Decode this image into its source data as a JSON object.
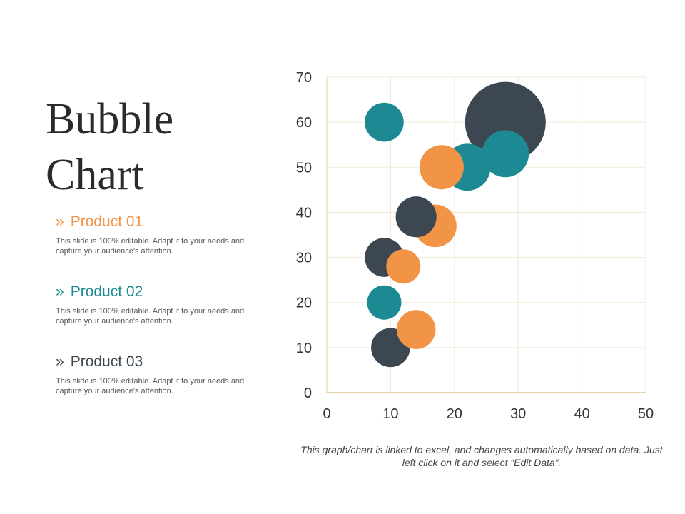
{
  "title": {
    "line1": "Bubble",
    "line2": "Chart"
  },
  "products": [
    {
      "chevron": "»",
      "name": "Product 01",
      "color": "#f29445",
      "description": "This slide is 100% editable. Adapt it to your needs and capture your audience's attention."
    },
    {
      "chevron": "»",
      "name": "Product 02",
      "color": "#1d8a93",
      "description": "This slide is 100% editable. Adapt it to your needs and capture your audience's attention."
    },
    {
      "chevron": "»",
      "name": "Product 03",
      "color": "#3d4752",
      "description": "This slide is 100% editable. Adapt it to your needs and capture your audience's attention."
    }
  ],
  "note": "This graph/chart is linked to excel, and changes automatically based on data. Just left click on it and select “Edit Data”.",
  "chart_data": {
    "type": "scatter",
    "subtype": "bubble",
    "title": "",
    "xlabel": "",
    "ylabel": "",
    "xlim": [
      0,
      50
    ],
    "ylim": [
      0,
      70
    ],
    "xticks": [
      0,
      10,
      20,
      30,
      40,
      50
    ],
    "yticks": [
      0,
      10,
      20,
      30,
      40,
      50,
      60,
      70
    ],
    "grid": true,
    "legend": "none",
    "series": [
      {
        "color": "#3d4752",
        "points": [
          {
            "x": 10,
            "y": 10,
            "size": 3.1
          },
          {
            "x": 9,
            "y": 30,
            "size": 3.1
          },
          {
            "x": 14,
            "y": 39,
            "size": 3.4
          },
          {
            "x": 28,
            "y": 60,
            "size": 13.3
          }
        ]
      },
      {
        "color": "#f29445",
        "points": [
          {
            "x": 14,
            "y": 14,
            "size": 3.1
          },
          {
            "x": 12,
            "y": 28,
            "size": 2.4
          },
          {
            "x": 17,
            "y": 37,
            "size": 3.7
          },
          {
            "x": 18,
            "y": 50,
            "size": 4.0
          }
        ]
      },
      {
        "color": "#1d8a93",
        "points": [
          {
            "x": 9,
            "y": 20,
            "size": 2.4
          },
          {
            "x": 9,
            "y": 60,
            "size": 3.1
          },
          {
            "x": 22,
            "y": 50,
            "size": 4.5
          },
          {
            "x": 28,
            "y": 53,
            "size": 4.5
          }
        ]
      }
    ]
  }
}
